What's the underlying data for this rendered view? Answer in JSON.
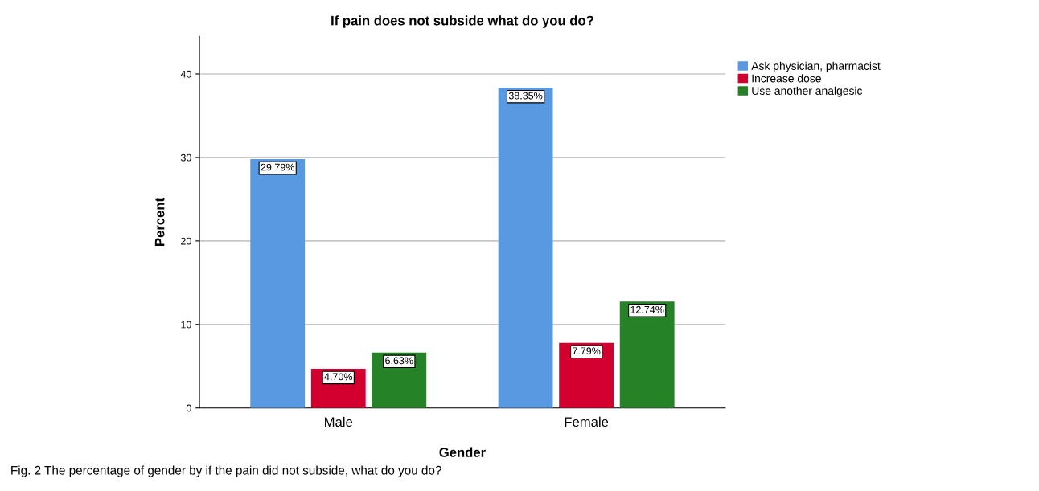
{
  "chart_data": {
    "type": "bar",
    "title": "If pain does not subside what do you do?",
    "xlabel": "Gender",
    "ylabel": "Percent",
    "categories": [
      "Male",
      "Female"
    ],
    "series": [
      {
        "name": "Ask physician, pharmacist",
        "color": "#5899e2",
        "values": [
          29.79,
          38.35
        ],
        "value_labels": [
          "29.79%",
          "38.35%"
        ]
      },
      {
        "name": "Increase dose",
        "color": "#d3002f",
        "values": [
          4.7,
          7.79
        ],
        "value_labels": [
          "4.70%",
          "7.79%"
        ]
      },
      {
        "name": "Use another analgesic",
        "color": "#268226",
        "values": [
          6.63,
          12.74
        ],
        "value_labels": [
          "6.63%",
          "12.74%"
        ]
      }
    ],
    "ylim": [
      0,
      44.5
    ],
    "yticks": [
      0,
      10,
      20,
      30,
      40
    ],
    "grid": "y",
    "legend": "top right",
    "annotations": [
      "Fig. 2 The percentage of gender by if the pain did not subside, what do you do?"
    ]
  }
}
